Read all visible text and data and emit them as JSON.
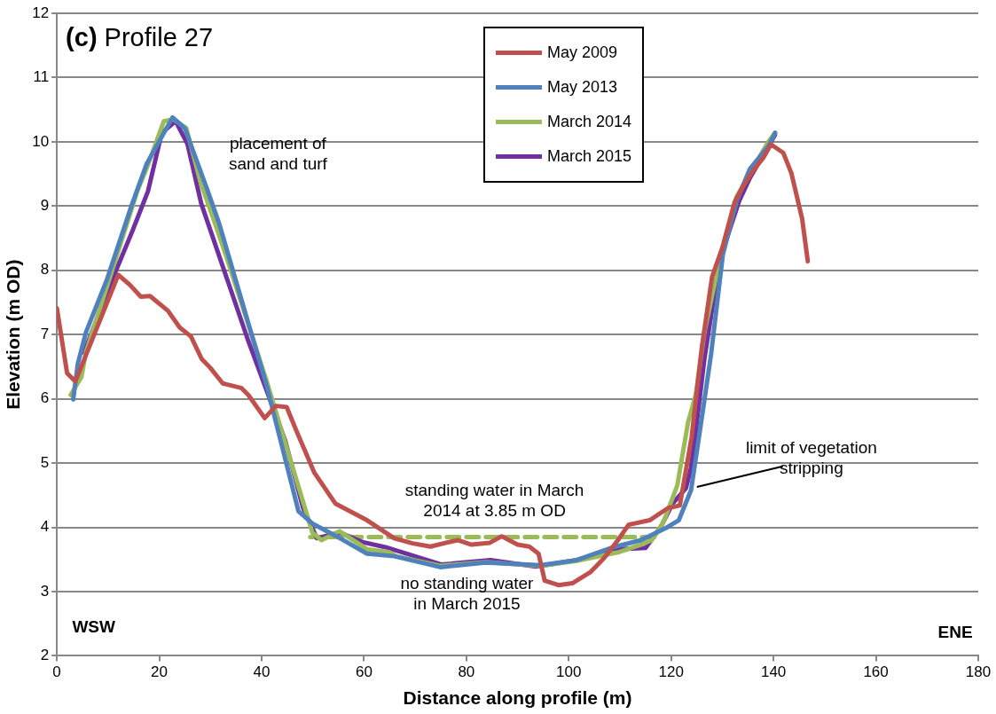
{
  "chart_data": {
    "type": "line",
    "title": "(c) Profile 27",
    "xlabel": "Distance along profile (m)",
    "ylabel": "Elevation (m OD)",
    "xlim": [
      0,
      180
    ],
    "xticks": [
      0,
      20,
      40,
      60,
      80,
      100,
      120,
      140,
      160,
      180
    ],
    "ylim": [
      2,
      12
    ],
    "yticks": [
      2,
      3,
      4,
      5,
      6,
      7,
      8,
      9,
      10,
      11,
      12
    ],
    "grid": "y",
    "legend": "top",
    "marker": "none",
    "series": [
      {
        "name": "May 2009",
        "color": "#c0504d",
        "x": [
          0,
          2,
          3.6,
          12,
          14.3,
          16.4,
          18.2,
          21.7,
          24,
          26.2,
          28.3,
          30,
          32.4,
          36,
          37.4,
          40.6,
          42.8,
          44.9,
          46.7,
          50.3,
          54.4,
          60.6,
          65.9,
          69.5,
          73,
          76.6,
          78.4,
          81,
          84.6,
          86.9,
          90,
          92.3,
          94.1,
          95.3,
          98,
          100.7,
          104.2,
          106.9,
          109.6,
          111.7,
          115.8,
          119.4,
          121.7,
          124,
          126,
          128,
          130,
          132.4,
          134,
          136,
          138,
          139.5,
          141.9,
          143.5,
          145.6,
          146.7
        ],
        "values": [
          7.41,
          6.4,
          6.27,
          7.93,
          7.77,
          7.59,
          7.6,
          7.37,
          7.11,
          6.97,
          6.62,
          6.48,
          6.24,
          6.17,
          6.06,
          5.7,
          5.89,
          5.87,
          5.52,
          4.85,
          4.37,
          4.11,
          3.83,
          3.75,
          3.7,
          3.77,
          3.8,
          3.73,
          3.76,
          3.86,
          3.73,
          3.7,
          3.59,
          3.17,
          3.1,
          3.13,
          3.3,
          3.52,
          3.8,
          4.04,
          4.11,
          4.3,
          4.34,
          5.4,
          6.8,
          7.9,
          8.35,
          9.06,
          9.3,
          9.55,
          9.75,
          9.96,
          9.83,
          9.51,
          8.8,
          8.14
        ]
      },
      {
        "name": "May 2013",
        "color": "#4f81bd",
        "x": [
          3.2,
          4.1,
          5.7,
          9.8,
          14.6,
          17.5,
          22.6,
          25,
          29.4,
          31.7,
          41,
          47.2,
          49.9,
          54.4,
          60.6,
          65.9,
          74.9,
          83.8,
          94.5,
          101.6,
          108.7,
          114.1,
          119,
          121.5,
          123.9,
          125.6,
          127.8,
          130.1,
          132.8,
          135.4,
          139,
          140.3
        ],
        "values": [
          5.99,
          6.55,
          7.04,
          7.86,
          9.01,
          9.65,
          10.38,
          10.21,
          9.25,
          8.73,
          6.2,
          4.25,
          4.06,
          3.87,
          3.59,
          3.55,
          3.38,
          3.45,
          3.41,
          3.49,
          3.69,
          3.8,
          3.99,
          4.11,
          4.58,
          5.49,
          6.69,
          8.24,
          9.08,
          9.58,
          9.93,
          10.14
        ]
      },
      {
        "name": "March 2014",
        "color": "#9bbb59",
        "x": [
          2.7,
          4.8,
          5.7,
          9.8,
          15.7,
          17.5,
          20.9,
          22.8,
          25.3,
          28,
          31.2,
          33,
          41,
          49.9,
          51.7,
          55.2,
          60.6,
          65,
          66.3,
          74.9,
          83.8,
          94.5,
          101.6,
          109.6,
          114.1,
          116.2,
          118.5,
          121.2,
          123.3,
          124.8,
          126.5,
          129.7,
          132.8,
          139,
          140.3
        ],
        "values": [
          6.06,
          6.34,
          6.73,
          7.75,
          9.23,
          9.58,
          10.32,
          10.35,
          10.21,
          9.39,
          8.66,
          8.24,
          6.27,
          3.92,
          3.8,
          3.94,
          3.66,
          3.61,
          3.55,
          3.4,
          3.46,
          3.4,
          3.48,
          3.61,
          3.73,
          3.8,
          4.08,
          4.65,
          5.63,
          6.06,
          7.04,
          8.24,
          9.15,
          10.0,
          10.14
        ]
      },
      {
        "name": "March 2015",
        "color": "#7030a0",
        "x": [
          5.3,
          11,
          14.8,
          17.8,
          20.5,
          23.2,
          25.5,
          28.2,
          37.4,
          44.6,
          48.1,
          50.8,
          55.2,
          59.7,
          64.2,
          69.5,
          75.2,
          84.7,
          93.6,
          101.6,
          106.9,
          109.6,
          115,
          118,
          120.3,
          122.9,
          123.9,
          124.8,
          126.5,
          128.7,
          130.1,
          133.3,
          135.4,
          140.3
        ],
        "values": [
          6.72,
          7.89,
          8.62,
          9.23,
          10.14,
          10.32,
          9.97,
          9.04,
          6.9,
          5.35,
          4.3,
          3.83,
          3.92,
          3.77,
          3.69,
          3.56,
          3.42,
          3.49,
          3.39,
          3.49,
          3.62,
          3.66,
          3.68,
          4.01,
          4.37,
          4.61,
          4.93,
          5.49,
          6.62,
          7.75,
          8.31,
          9.08,
          9.44,
          10.11
        ]
      },
      {
        "color": "#9bbb59",
        "line_style": "dashed",
        "x": [
          49.5,
          117
        ],
        "values": [
          3.85,
          3.85
        ]
      }
    ],
    "annotations": [
      "placement of\nsand and turf",
      "standing water in March\n2014 at 3.85 m OD",
      "no standing water\nin March 2015",
      {
        "text": "limit of vegetation\nstripping",
        "x": 124,
        "y": 4.6
      },
      "WSW",
      "ENE"
    ]
  }
}
